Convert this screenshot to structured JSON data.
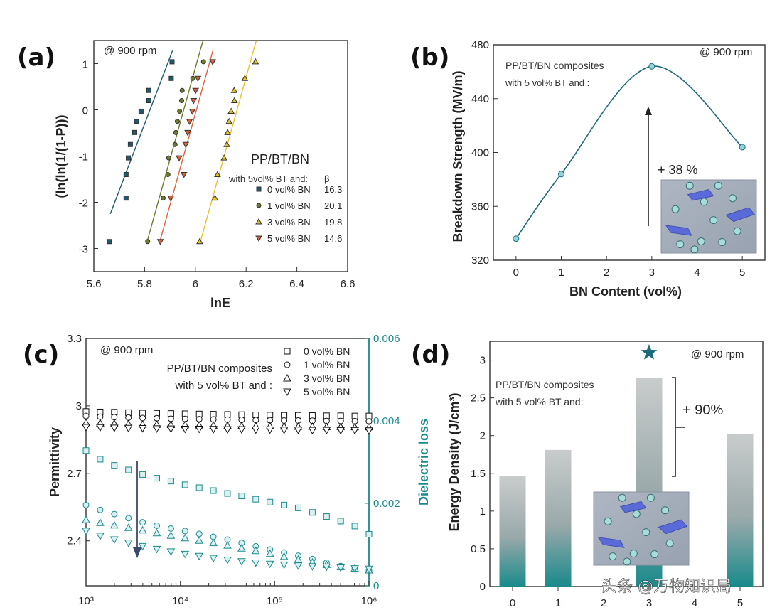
{
  "figure": {
    "watermark": "头条 @万物知识局"
  },
  "chart_data": [
    {
      "id": "a",
      "panel_label": "(a)",
      "type": "scatter",
      "title": "",
      "xlabel": "lnE",
      "ylabel": "(ln(ln(1/(1-P)))",
      "xlim": [
        5.6,
        6.6
      ],
      "ylim": [
        -3.5,
        1.5
      ],
      "xticks": [
        "5.6",
        "5.8",
        "6",
        "6.2",
        "6.4",
        "6.6"
      ],
      "xtick_values": [
        5.6,
        5.8,
        6.0,
        6.2,
        6.4,
        6.6
      ],
      "yticks": [
        "1",
        "0",
        "-1",
        "-2",
        "-3"
      ],
      "ytick_values": [
        1,
        0,
        -1,
        -2,
        -3
      ],
      "annotation": "@ 900 rpm",
      "legend_title": "PP/BT/BN",
      "legend_subtitle": "with 5vol% BT and:",
      "legend_beta_header": "β",
      "legend_position": "bottom-right",
      "series": [
        {
          "name": "0 vol% BN",
          "beta": "16.3",
          "marker": "square",
          "color": "#1f5a6e",
          "x": [
            5.661,
            5.727,
            5.727,
            5.736,
            5.744,
            5.761,
            5.768,
            5.786,
            5.817,
            5.817,
            5.905,
            5.908
          ],
          "y": [
            -2.85,
            -1.91,
            -1.4,
            -1.04,
            -0.75,
            -0.49,
            -0.25,
            -0.03,
            0.2,
            0.42,
            0.68,
            1.04
          ],
          "fit": [
            [
              5.665,
              -2.25
            ],
            [
              5.91,
              1.28
            ]
          ]
        },
        {
          "name": "1 vol% BN",
          "beta": "20.1",
          "marker": "circle",
          "color": "#6b7d2a",
          "x": [
            5.812,
            5.873,
            5.892,
            5.895,
            5.92,
            5.923,
            5.929,
            5.938,
            5.946,
            5.948,
            5.99,
            6.032
          ],
          "y": [
            -2.85,
            -1.91,
            -1.4,
            -1.04,
            -0.75,
            -0.49,
            -0.25,
            -0.03,
            0.2,
            0.42,
            0.68,
            1.04
          ],
          "fit": [
            [
              5.81,
              -2.85
            ],
            [
              6.03,
              1.5
            ]
          ]
        },
        {
          "name": "3 vol% BN",
          "beta": "19.8",
          "marker": "triangle-up",
          "color": "#e8c02a",
          "x": [
            6.017,
            6.077,
            6.087,
            6.113,
            6.124,
            6.127,
            6.133,
            6.141,
            6.154,
            6.153,
            6.195,
            6.237
          ],
          "y": [
            -2.85,
            -1.91,
            -1.4,
            -1.04,
            -0.75,
            -0.49,
            -0.25,
            -0.03,
            0.2,
            0.42,
            0.68,
            1.04
          ],
          "fit": [
            [
              6.02,
              -2.85
            ],
            [
              6.24,
              1.5
            ]
          ]
        },
        {
          "name": "5 vol% BN",
          "beta": "14.6",
          "marker": "triangle-down",
          "color": "#e0603a",
          "x": [
            5.862,
            5.903,
            5.955,
            5.936,
            5.962,
            5.97,
            5.977,
            5.988,
            5.993,
            6.001,
            6.01,
            6.068
          ],
          "y": [
            -2.85,
            -1.91,
            -1.4,
            -1.04,
            -0.75,
            -0.49,
            -0.25,
            -0.03,
            0.2,
            0.42,
            0.68,
            1.04
          ],
          "fit": [
            [
              5.86,
              -2.85
            ],
            [
              6.07,
              1.3
            ]
          ]
        }
      ]
    },
    {
      "id": "b",
      "panel_label": "(b)",
      "type": "line",
      "xlabel": "BN Content (vol%)",
      "ylabel": "Breakdown Strength (MV/m)",
      "xlim": [
        -0.5,
        5.5
      ],
      "ylim": [
        320,
        480
      ],
      "xticks": [
        "0",
        "1",
        "2",
        "3",
        "4",
        "5"
      ],
      "xtick_values": [
        0,
        1,
        2,
        3,
        4,
        5
      ],
      "yticks": [
        "320",
        "360",
        "400",
        "440",
        "480"
      ],
      "ytick_values": [
        320,
        360,
        400,
        440,
        480
      ],
      "annotation": "@ 900 rpm",
      "note_line1": "PP/BT/BN composites",
      "note_line2": "with 5 vol% BT and :",
      "increase_label": "+ 38 %",
      "line_color": "#1d6a78",
      "marker_color": "#8fd3dc",
      "series": [
        {
          "name": "Breakdown Strength",
          "x": [
            0,
            1,
            3,
            5
          ],
          "y": [
            336,
            384,
            464,
            404
          ]
        }
      ]
    },
    {
      "id": "c",
      "panel_label": "(c)",
      "type": "scatter",
      "xlabel": "",
      "ylabel": "Permittivity",
      "y2label": "Dielectric loss",
      "xscale": "log",
      "xlim": [
        1000,
        1000000
      ],
      "ylim": [
        2.2,
        3.3
      ],
      "y2lim": [
        0,
        0.006
      ],
      "xticks": [
        "10³",
        "10⁴",
        "10⁵",
        "10⁶"
      ],
      "xtick_values": [
        1000,
        10000,
        100000,
        1000000
      ],
      "yticks": [
        "3.3",
        "3",
        "2.7",
        "2.4"
      ],
      "ytick_values": [
        3.3,
        3.0,
        2.7,
        2.4
      ],
      "y2ticks": [
        "0.006",
        "0.004",
        "0.002",
        "0"
      ],
      "y2tick_values": [
        0.006,
        0.004,
        0.002,
        0
      ],
      "annotation": "@ 900 rpm",
      "note_line1": "PP/BT/BN composites",
      "note_line2": "with 5 vol% BT and :",
      "legend_position": "top-right",
      "permittivity_color": "#111111",
      "loss_color": "#1a8a8c",
      "x_points_per_series": 21,
      "series": [
        {
          "name": "0 vol% BN",
          "marker": "square",
          "permittivity": [
            2.975,
            2.973,
            2.972,
            2.97,
            2.968,
            2.967,
            2.966,
            2.965,
            2.964,
            2.963,
            2.962,
            2.961,
            2.96,
            2.959,
            2.958,
            2.958,
            2.957,
            2.956,
            2.956,
            2.955,
            2.955
          ],
          "loss": [
            0.00328,
            0.00307,
            0.00292,
            0.00281,
            0.0027,
            0.00261,
            0.00254,
            0.00245,
            0.00238,
            0.00231,
            0.00224,
            0.00218,
            0.0021,
            0.00203,
            0.00196,
            0.00189,
            0.00178,
            0.00168,
            0.00157,
            0.00145,
            0.00125
          ]
        },
        {
          "name": "1 vol% BN",
          "marker": "circle",
          "permittivity": [
            2.955,
            2.952,
            2.95,
            2.948,
            2.946,
            2.945,
            2.943,
            2.942,
            2.941,
            2.94,
            2.939,
            2.938,
            2.937,
            2.936,
            2.935,
            2.935,
            2.934,
            2.933,
            2.933,
            2.932,
            2.931
          ],
          "loss": [
            0.00196,
            0.00184,
            0.00174,
            0.00164,
            0.00154,
            0.00146,
            0.00139,
            0.00133,
            0.00126,
            0.00119,
            0.00112,
            0.00104,
            0.00096,
            0.00088,
            0.00081,
            0.00073,
            0.00065,
            0.00056,
            0.00048,
            0.00042,
            0.00037
          ]
        },
        {
          "name": "3 vol% BN",
          "marker": "triangle-up",
          "permittivity": [
            2.925,
            2.923,
            2.921,
            2.92,
            2.918,
            2.917,
            2.916,
            2.915,
            2.914,
            2.913,
            2.912,
            2.911,
            2.91,
            2.91,
            2.909,
            2.908,
            2.908,
            2.907,
            2.907,
            2.906,
            2.906
          ],
          "loss": [
            0.0016,
            0.00153,
            0.00147,
            0.00141,
            0.00135,
            0.00128,
            0.00122,
            0.00116,
            0.0011,
            0.00104,
            0.00098,
            0.00091,
            0.00085,
            0.00078,
            0.00071,
            0.00064,
            0.00057,
            0.00051,
            0.00046,
            0.00042,
            0.00038
          ]
        },
        {
          "name": "5 vol% BN",
          "marker": "triangle-down",
          "permittivity": [
            2.905,
            2.904,
            2.902,
            2.901,
            2.9,
            2.899,
            2.898,
            2.897,
            2.897,
            2.896,
            2.895,
            2.895,
            2.894,
            2.894,
            2.893,
            2.893,
            2.892,
            2.892,
            2.891,
            2.891,
            2.89
          ],
          "loss": [
            0.00133,
            0.00121,
            0.00112,
            0.00104,
            0.00096,
            0.00089,
            0.00083,
            0.00077,
            0.00072,
            0.00067,
            0.00063,
            0.00059,
            0.00056,
            0.00053,
            0.00051,
            0.00049,
            0.00047,
            0.00046,
            0.00044,
            0.00042,
            0.00041
          ]
        }
      ],
      "arrow_annotation": "decreasing loss with BN content"
    },
    {
      "id": "d",
      "panel_label": "(d)",
      "type": "bar",
      "xlabel": "",
      "ylabel": "Energy Density (J/cm³)",
      "xlim": [
        -0.5,
        5.5
      ],
      "ylim": [
        0,
        3.25
      ],
      "categories": [
        "0",
        "1",
        "2",
        "3",
        "4",
        "5"
      ],
      "category_values": [
        0,
        1,
        2,
        3,
        4,
        5
      ],
      "yticks": [
        "0",
        "0.5",
        "1",
        "1.5",
        "2",
        "2.5",
        "3"
      ],
      "ytick_values": [
        0,
        0.5,
        1,
        1.5,
        2,
        2.5,
        3
      ],
      "annotation": "@ 900 rpm",
      "note_line1": "PP/BT/BN composites",
      "note_line2": "with 5 vol% BT and:",
      "increase_label": "+ 90%",
      "bar_top_color": "#c9cccc",
      "bar_bottom_color": "#1a8a8c",
      "star_color": "#1d6a78",
      "star_at": [
        3,
        3.1
      ],
      "series": [
        {
          "name": "Energy Density",
          "x": [
            0,
            1,
            3,
            5
          ],
          "values": [
            1.46,
            1.81,
            2.77,
            2.02
          ]
        }
      ]
    }
  ]
}
